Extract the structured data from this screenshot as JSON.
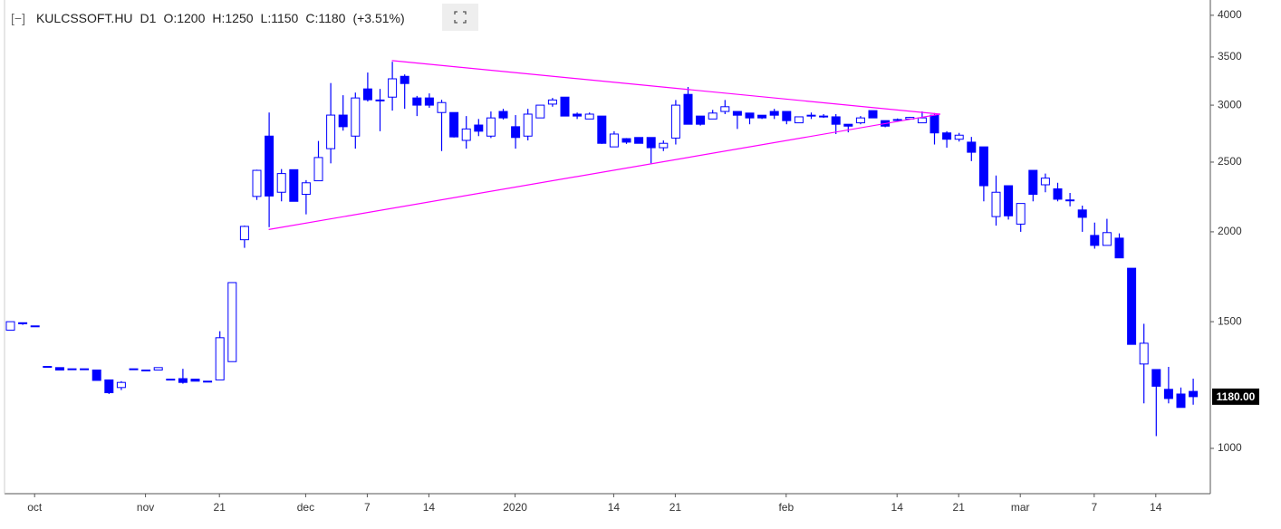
{
  "chart_data": {
    "type": "candlestick",
    "header_items": [
      "KULCSSOFT.HU",
      "D1",
      "O:1200",
      "H:1250",
      "L:1150",
      "C:1180",
      "(+3.51%)"
    ],
    "up_color": "#ffffff",
    "down_color": "#0000ff",
    "wick_color": "#0000ff",
    "log_scale": true,
    "ylim": [
      865,
      4140
    ],
    "yticks": [
      1000,
      1500,
      2000,
      2500,
      3000,
      3500,
      4000
    ],
    "last_price_label": {
      "value": 1180,
      "label": "1180.00"
    },
    "categories": [
      null,
      null,
      "oct",
      null,
      null,
      null,
      null,
      null,
      null,
      null,
      null,
      "nov",
      null,
      null,
      null,
      null,
      null,
      "21",
      null,
      null,
      null,
      null,
      null,
      null,
      "dec",
      null,
      null,
      null,
      null,
      "7",
      null,
      null,
      null,
      null,
      "14",
      null,
      null,
      null,
      null,
      null,
      null,
      "2020",
      null,
      null,
      null,
      null,
      null,
      null,
      null,
      "14",
      null,
      null,
      null,
      null,
      "21",
      null,
      null,
      null,
      null,
      null,
      null,
      null,
      null,
      "feb",
      null,
      null,
      null,
      null,
      null,
      null,
      null,
      null,
      "14",
      null,
      null,
      null,
      null,
      "21",
      null,
      null,
      null,
      null,
      "mar",
      null,
      null,
      null,
      null,
      null,
      "7",
      null,
      null,
      null,
      null,
      "14",
      null,
      null,
      null
    ],
    "ohlc": [
      [
        1460,
        1500,
        1460,
        1500
      ],
      [
        1495,
        1495,
        1485,
        1490
      ],
      [
        1480,
        1480,
        1480,
        1480
      ],
      [
        1300,
        1300,
        1300,
        1300
      ],
      [
        1295,
        1295,
        1285,
        1285
      ],
      [
        1290,
        1290,
        1290,
        1290
      ],
      [
        1290,
        1290,
        1290,
        1290
      ],
      [
        1285,
        1285,
        1243,
        1243
      ],
      [
        1245,
        1245,
        1190,
        1195
      ],
      [
        1215,
        1240,
        1205,
        1235
      ],
      [
        1290,
        1290,
        1290,
        1290
      ],
      [
        1285,
        1285,
        1285,
        1285
      ],
      [
        1285,
        1295,
        1285,
        1295
      ],
      [
        1248,
        1248,
        1248,
        1248
      ],
      [
        1250,
        1290,
        1230,
        1235
      ],
      [
        1248,
        1248,
        1240,
        1240
      ],
      [
        1240,
        1240,
        1240,
        1240
      ],
      [
        1245,
        1455,
        1245,
        1425
      ],
      [
        1320,
        1700,
        1320,
        1700
      ],
      [
        1950,
        2040,
        1900,
        2035
      ],
      [
        2240,
        2440,
        2215,
        2435
      ],
      [
        2717,
        2930,
        2030,
        2243
      ],
      [
        2270,
        2445,
        2205,
        2410
      ],
      [
        2440,
        2440,
        2205,
        2205
      ],
      [
        2255,
        2360,
        2115,
        2340
      ],
      [
        2355,
        2675,
        2355,
        2537
      ],
      [
        2610,
        3220,
        2490,
        2906
      ],
      [
        2906,
        3097,
        2765,
        2800
      ],
      [
        2717,
        3123,
        2610,
        3070
      ],
      [
        3160,
        3330,
        3035,
        3052
      ],
      [
        3050,
        3160,
        2760,
        3050
      ],
      [
        3078,
        3447,
        2948,
        3264
      ],
      [
        3290,
        3310,
        2965,
        3215
      ],
      [
        3070,
        3090,
        2897,
        3000
      ],
      [
        3070,
        3115,
        2975,
        3000
      ],
      [
        2930,
        3052,
        2590,
        3025
      ],
      [
        2930,
        2930,
        2705,
        2710
      ],
      [
        2680,
        2897,
        2610,
        2780
      ],
      [
        2815,
        2870,
        2717,
        2760
      ],
      [
        2717,
        2940,
        2700,
        2880
      ],
      [
        2940,
        2965,
        2865,
        2880
      ],
      [
        2800,
        2906,
        2610,
        2705
      ],
      [
        2717,
        2965,
        2680,
        2915
      ],
      [
        2880,
        3000,
        2880,
        3000
      ],
      [
        3010,
        3070,
        2985,
        3050
      ],
      [
        3078,
        3078,
        2897,
        2897
      ],
      [
        2915,
        2930,
        2870,
        2897
      ],
      [
        2870,
        2930,
        2870,
        2915
      ],
      [
        2897,
        2897,
        2650,
        2655
      ],
      [
        2625,
        2760,
        2625,
        2735
      ],
      [
        2695,
        2700,
        2650,
        2665
      ],
      [
        2705,
        2705,
        2655,
        2655
      ],
      [
        2705,
        2705,
        2490,
        2618
      ],
      [
        2618,
        2680,
        2590,
        2655
      ],
      [
        2700,
        3050,
        2645,
        3000
      ],
      [
        3105,
        3180,
        2822,
        2822
      ],
      [
        2897,
        2897,
        2810,
        2822
      ],
      [
        2870,
        2955,
        2870,
        2925
      ],
      [
        2940,
        3050,
        2915,
        2985
      ],
      [
        2940,
        2940,
        2780,
        2905
      ],
      [
        2925,
        2925,
        2822,
        2880
      ],
      [
        2905,
        2905,
        2870,
        2880
      ],
      [
        2940,
        2965,
        2870,
        2905
      ],
      [
        2940,
        2940,
        2822,
        2855
      ],
      [
        2835,
        2890,
        2835,
        2890
      ],
      [
        2905,
        2930,
        2870,
        2905
      ],
      [
        2897,
        2915,
        2880,
        2897
      ],
      [
        2890,
        2915,
        2735,
        2822
      ],
      [
        2822,
        2822,
        2750,
        2805
      ],
      [
        2835,
        2897,
        2822,
        2880
      ],
      [
        2948,
        2948,
        2880,
        2880
      ],
      [
        2855,
        2855,
        2795,
        2805
      ],
      [
        2865,
        2875,
        2860,
        2865
      ],
      [
        2870,
        2890,
        2865,
        2885
      ],
      [
        2835,
        2940,
        2835,
        2880
      ],
      [
        2905,
        2925,
        2645,
        2745
      ],
      [
        2745,
        2760,
        2618,
        2690
      ],
      [
        2690,
        2745,
        2670,
        2725
      ],
      [
        2665,
        2710,
        2508,
        2580
      ],
      [
        2625,
        2625,
        2205,
        2318
      ],
      [
        2100,
        2395,
        2040,
        2270
      ],
      [
        2318,
        2318,
        2080,
        2105
      ],
      [
        2050,
        2190,
        2000,
        2190
      ],
      [
        2435,
        2435,
        2205,
        2255
      ],
      [
        2325,
        2410,
        2270,
        2375
      ],
      [
        2295,
        2340,
        2205,
        2220
      ],
      [
        2215,
        2265,
        2170,
        2215
      ],
      [
        2145,
        2175,
        2000,
        2095
      ],
      [
        1977,
        2060,
        1895,
        1915
      ],
      [
        1915,
        2085,
        1915,
        1995
      ],
      [
        1960,
        1990,
        1840,
        1840
      ],
      [
        1780,
        1780,
        1395,
        1395
      ],
      [
        1310,
        1490,
        1155,
        1400
      ],
      [
        1287,
        1287,
        1040,
        1220
      ],
      [
        1208,
        1298,
        1155,
        1173
      ],
      [
        1190,
        1215,
        1140,
        1140
      ],
      [
        1200,
        1250,
        1150,
        1180
      ]
    ],
    "trendlines": [
      {
        "color": "#ff00ff",
        "x": [
          31,
          75.5
        ],
        "y": [
          3460,
          2915
        ]
      },
      {
        "color": "#ff00ff",
        "x": [
          21,
          75.5
        ],
        "y": [
          2015,
          2915
        ]
      }
    ]
  }
}
